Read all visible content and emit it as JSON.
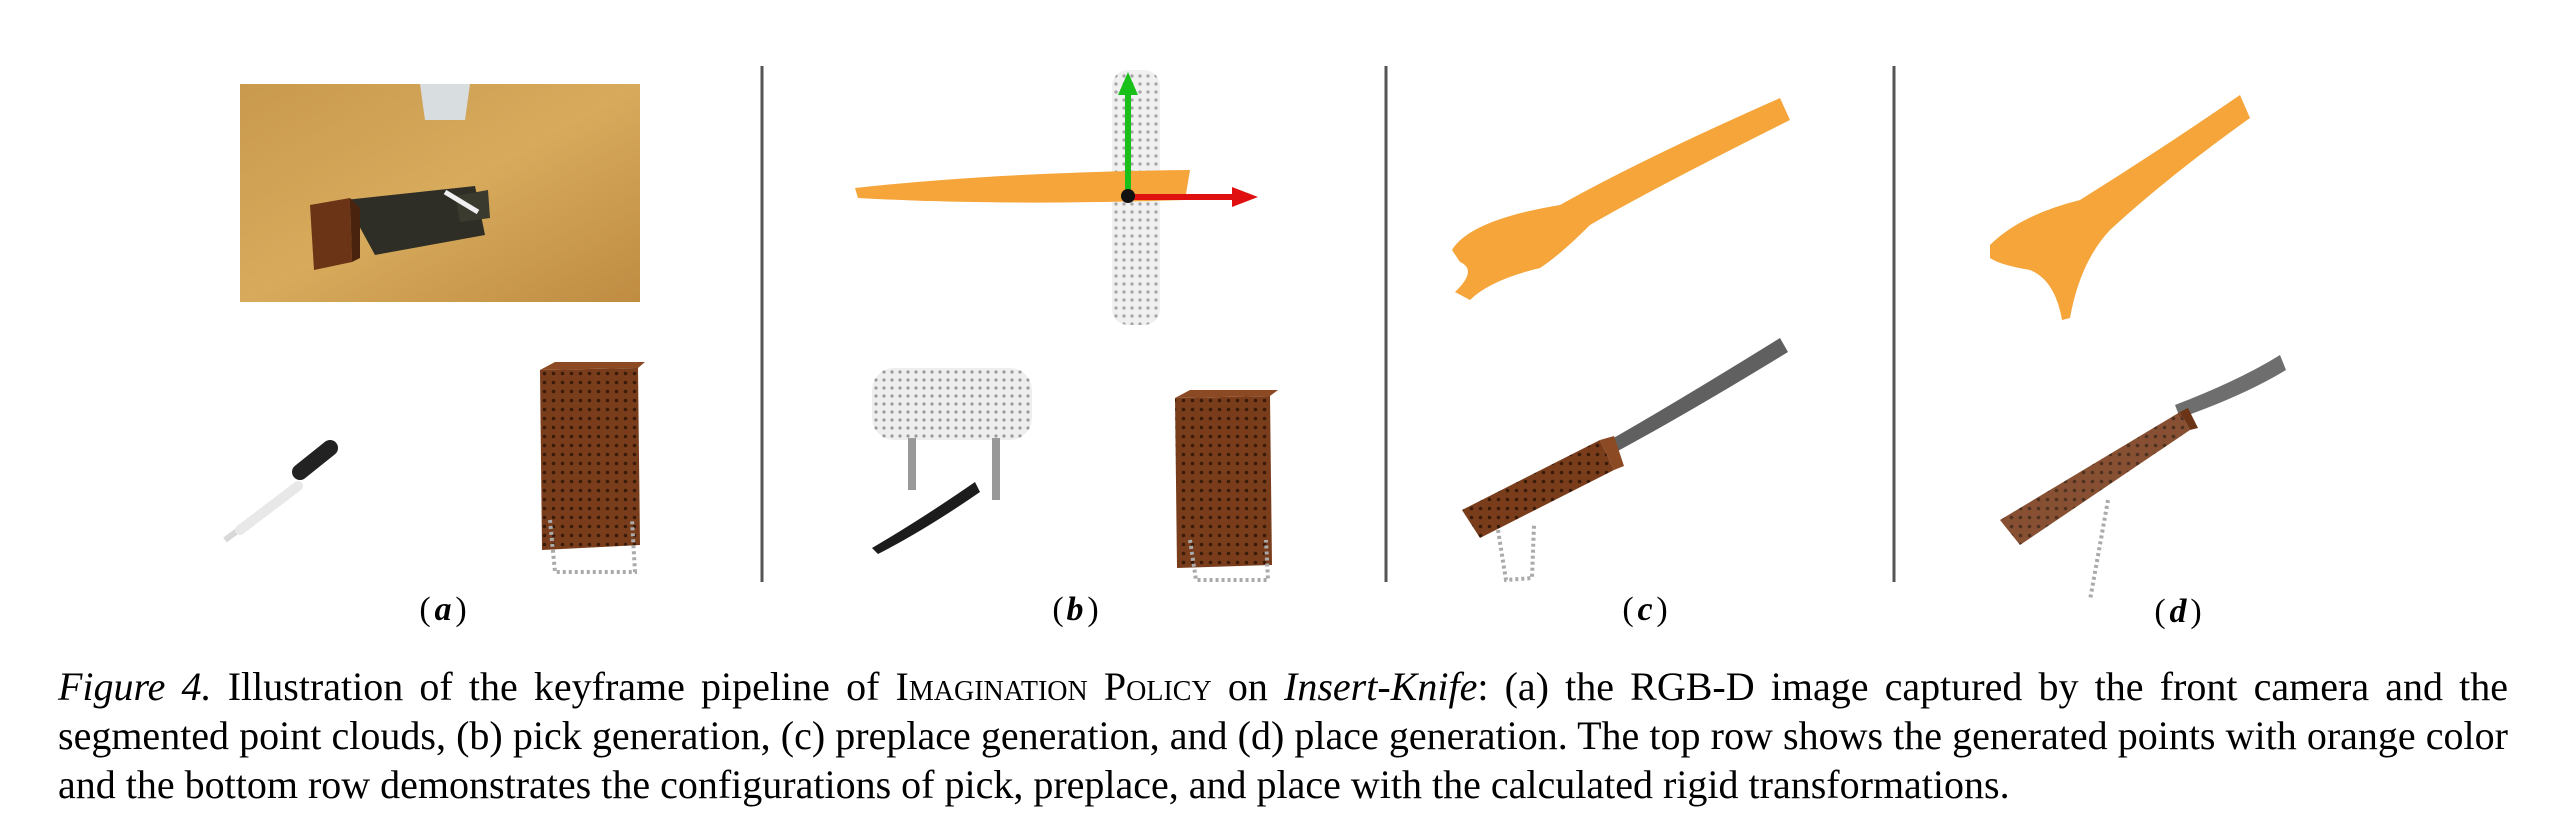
{
  "figure": {
    "panels": [
      {
        "id": "a",
        "label": "a"
      },
      {
        "id": "b",
        "label": "b"
      },
      {
        "id": "c",
        "label": "c"
      },
      {
        "id": "d",
        "label": "d"
      }
    ],
    "colors": {
      "generated_points": "#f5a53a",
      "knife_points": "#2a2a2a",
      "block_points": "#7a3d1c",
      "gripper_points": "#c8c8c8",
      "axis_x": "#e01010",
      "axis_y": "#19c019",
      "divider": "#555555"
    }
  },
  "caption": {
    "label": "Figure 4.",
    "t1": " Illustration of the keyframe pipeline of ",
    "method": "Imagination Policy",
    "t2": " on ",
    "task": "Insert-Knife",
    "t3": ": (a) the RGB-D image captured by the front camera and the segmented point clouds, (b) pick generation, (c) preplace generation, and (d) place generation. The top row shows the generated points with orange color and the bottom row demonstrates the configurations of pick, preplace, and place with the calculated rigid transformations."
  }
}
